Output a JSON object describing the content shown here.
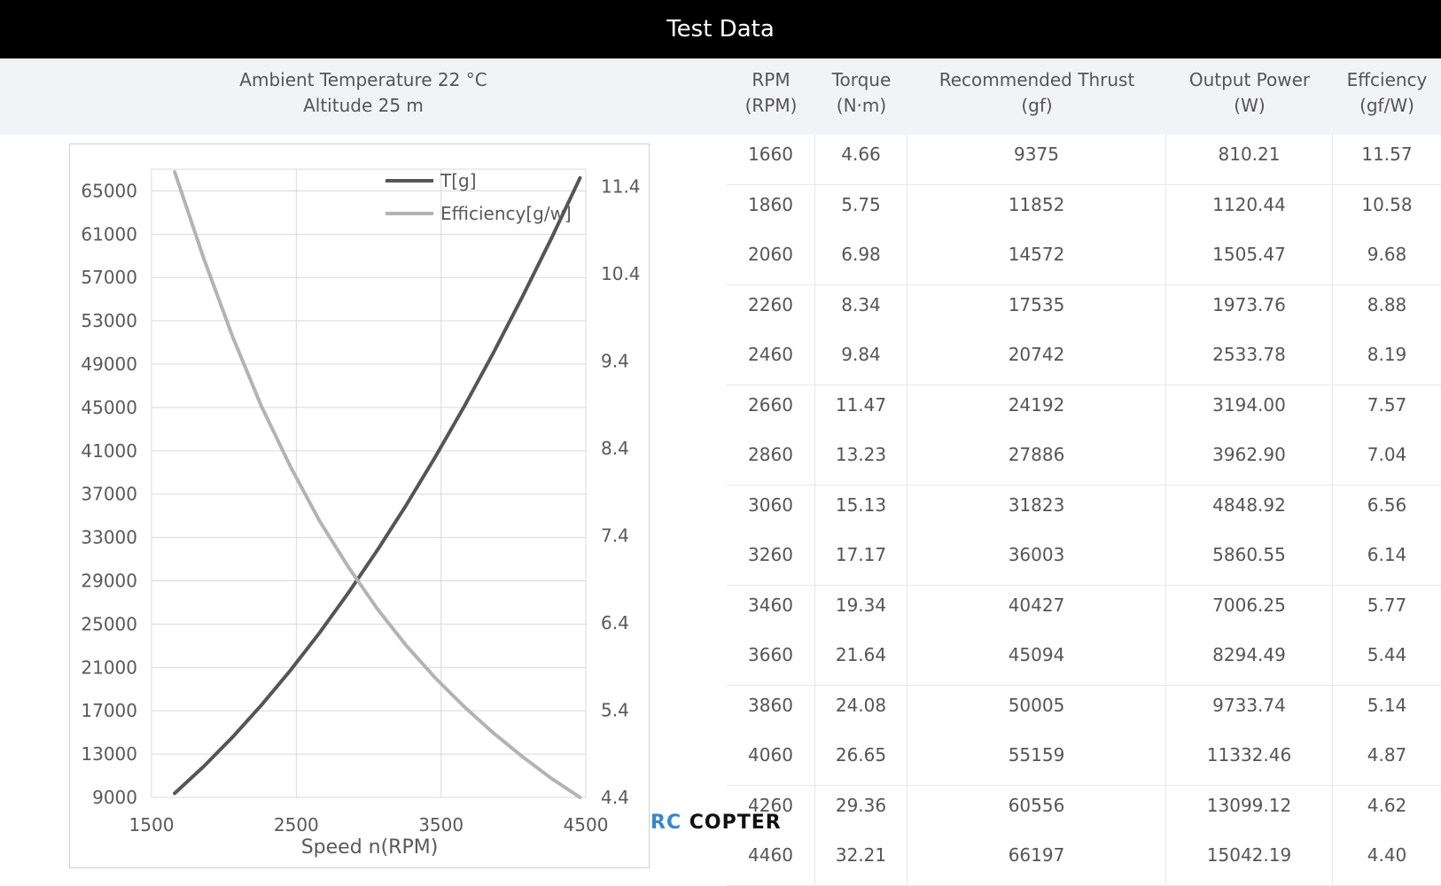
{
  "page": {
    "title": "Test Data"
  },
  "conditions": {
    "ambient": "Ambient Temperature  22 °C",
    "altitude": "Altitude  25 m"
  },
  "table": {
    "columns": [
      {
        "line1": "RPM",
        "line2": "(RPM)"
      },
      {
        "line1": "Torque",
        "line2": "(N·m)"
      },
      {
        "line1": "Recommended Thrust",
        "line2": "(gf)"
      },
      {
        "line1": "Output Power",
        "line2": "(W)"
      },
      {
        "line1": "Effciency",
        "line2": "(gf/W)"
      }
    ],
    "rows": [
      [
        "1660",
        "4.66",
        "9375",
        "810.21",
        "11.57"
      ],
      [
        "1860",
        "5.75",
        "11852",
        "1120.44",
        "10.58"
      ],
      [
        "2060",
        "6.98",
        "14572",
        "1505.47",
        "9.68"
      ],
      [
        "2260",
        "8.34",
        "17535",
        "1973.76",
        "8.88"
      ],
      [
        "2460",
        "9.84",
        "20742",
        "2533.78",
        "8.19"
      ],
      [
        "2660",
        "11.47",
        "24192",
        "3194.00",
        "7.57"
      ],
      [
        "2860",
        "13.23",
        "27886",
        "3962.90",
        "7.04"
      ],
      [
        "3060",
        "15.13",
        "31823",
        "4848.92",
        "6.56"
      ],
      [
        "3260",
        "17.17",
        "36003",
        "5860.55",
        "6.14"
      ],
      [
        "3460",
        "19.34",
        "40427",
        "7006.25",
        "5.77"
      ],
      [
        "3660",
        "21.64",
        "45094",
        "8294.49",
        "5.44"
      ],
      [
        "3860",
        "24.08",
        "50005",
        "9733.74",
        "5.14"
      ],
      [
        "4060",
        "26.65",
        "55159",
        "11332.46",
        "4.87"
      ],
      [
        "4260",
        "29.36",
        "60556",
        "13099.12",
        "4.62"
      ],
      [
        "4460",
        "32.21",
        "66197",
        "15042.19",
        "4.40"
      ]
    ]
  },
  "chart_data": {
    "type": "line",
    "xlabel": "Speed n(RPM)",
    "xlim": [
      1500,
      4500
    ],
    "xticks": [
      "1500",
      "2500",
      "3500",
      "4500"
    ],
    "ylim_left": [
      9000,
      67000
    ],
    "yticks_left": [
      "9000",
      "13000",
      "17000",
      "21000",
      "25000",
      "29000",
      "33000",
      "37000",
      "41000",
      "45000",
      "49000",
      "53000",
      "57000",
      "61000",
      "65000"
    ],
    "ylim_right": [
      4.4,
      11.6
    ],
    "yticks_right": [
      "4.4",
      "5.4",
      "6.4",
      "7.4",
      "8.4",
      "9.4",
      "10.4",
      "11.4"
    ],
    "grid": true,
    "legend_position": "top-right",
    "x": [
      1660,
      1860,
      2060,
      2260,
      2460,
      2660,
      2860,
      3060,
      3260,
      3460,
      3660,
      3860,
      4060,
      4260,
      4460
    ],
    "series": [
      {
        "name": "T[g]",
        "axis": "left",
        "color": "#555555",
        "values": [
          9375,
          11852,
          14572,
          17535,
          20742,
          24192,
          27886,
          31823,
          36003,
          40427,
          45094,
          50005,
          55159,
          60556,
          66197
        ]
      },
      {
        "name": "Efficiency[g/w]",
        "axis": "right",
        "color": "#b3b3b3",
        "values": [
          11.57,
          10.58,
          9.68,
          8.88,
          8.19,
          7.57,
          7.04,
          6.56,
          6.14,
          5.77,
          5.44,
          5.14,
          4.87,
          4.62,
          4.4
        ]
      }
    ]
  },
  "watermark": {
    "part1": "RC",
    "part2": "COPTER"
  }
}
